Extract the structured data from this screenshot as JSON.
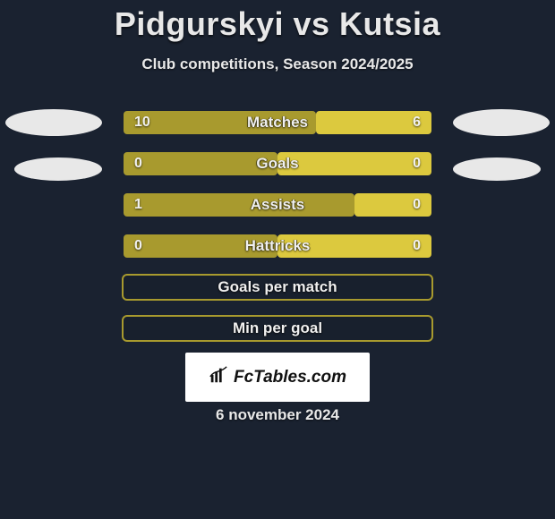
{
  "colors": {
    "background": "#1a2230",
    "text": "#e8e8e8",
    "accent_left": "#a89a2e",
    "accent_right": "#dcc93e",
    "avatar": "#e8e8e8",
    "logo_bg": "#ffffff",
    "logo_text": "#111111"
  },
  "title": "Pidgurskyi vs Kutsia",
  "subtitle": "Club competitions, Season 2024/2025",
  "typography": {
    "title_fontsize": 36,
    "subtitle_fontsize": 17,
    "bar_label_fontsize": 17,
    "bar_value_fontsize": 16,
    "date_fontsize": 17,
    "font_weight": 700
  },
  "bars": [
    {
      "label": "Matches",
      "left_val": "10",
      "right_val": "6",
      "left_pct": 62.5,
      "right_pct": 37.5,
      "show_vals": true
    },
    {
      "label": "Goals",
      "left_val": "0",
      "right_val": "0",
      "left_pct": 50,
      "right_pct": 50,
      "show_vals": true
    },
    {
      "label": "Assists",
      "left_val": "1",
      "right_val": "0",
      "left_pct": 75,
      "right_pct": 25,
      "show_vals": true
    },
    {
      "label": "Hattricks",
      "left_val": "0",
      "right_val": "0",
      "left_pct": 50,
      "right_pct": 50,
      "show_vals": true
    },
    {
      "label": "Goals per match",
      "left_val": "",
      "right_val": "",
      "left_pct": 0,
      "right_pct": 0,
      "show_vals": false,
      "empty": true
    },
    {
      "label": "Min per goal",
      "left_val": "",
      "right_val": "",
      "left_pct": 0,
      "right_pct": 0,
      "show_vals": false,
      "empty": true
    }
  ],
  "logo": {
    "text": "FcTables.com"
  },
  "date": "6 november 2024"
}
